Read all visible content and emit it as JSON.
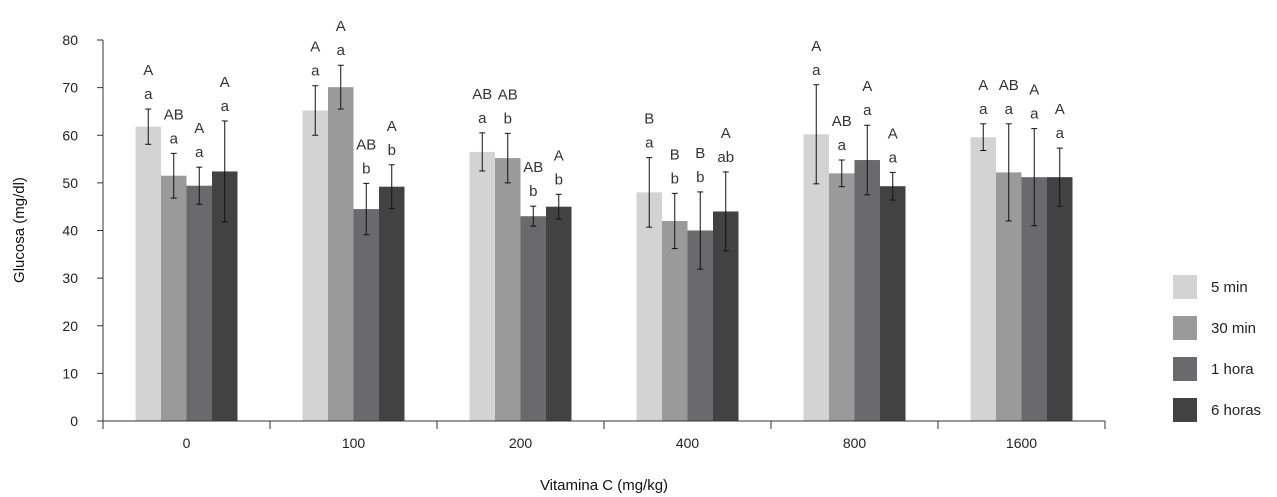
{
  "chart_data": {
    "type": "bar",
    "title": "",
    "xlabel": "Vitamina C (mg/kg)",
    "ylabel": "Glucosa (mg/dl)",
    "ylim": [
      0,
      80
    ],
    "yticks": [
      0,
      10,
      20,
      30,
      40,
      50,
      60,
      70,
      80
    ],
    "categories": [
      "0",
      "100",
      "200",
      "400",
      "800",
      "1600"
    ],
    "grid": false,
    "legend_position": "right",
    "series": [
      {
        "name": "5 min",
        "color": "#d3d3d3",
        "values": [
          61.8,
          65.2,
          56.5,
          48.0,
          60.2,
          59.6
        ],
        "errors": [
          3.7,
          5.2,
          4.0,
          7.3,
          10.4,
          2.8
        ],
        "upper_labels": [
          "A",
          "A",
          "AB",
          "B",
          "A",
          "A"
        ],
        "lower_labels": [
          "a",
          "a",
          "a",
          "a",
          "a",
          "a"
        ]
      },
      {
        "name": "30 min",
        "color": "#9a9a9a",
        "values": [
          51.5,
          70.1,
          55.2,
          42.0,
          52.0,
          52.2
        ],
        "errors": [
          4.7,
          4.6,
          5.2,
          5.8,
          2.8,
          10.2
        ],
        "upper_labels": [
          "AB",
          "A",
          "AB",
          "B",
          "AB",
          "AB"
        ],
        "lower_labels": [
          "a",
          "a",
          "b",
          "b",
          "a",
          "a"
        ]
      },
      {
        "name": "1 hora",
        "color": "#6a6a6c",
        "values": [
          49.4,
          44.5,
          43.0,
          40.0,
          54.8,
          51.2
        ],
        "errors": [
          3.9,
          5.4,
          2.1,
          8.1,
          7.3,
          10.2
        ],
        "upper_labels": [
          "A",
          "AB",
          "AB",
          "B",
          "A",
          "A"
        ],
        "lower_labels": [
          "a",
          "b",
          "b",
          "b",
          "a",
          "a"
        ]
      },
      {
        "name": "6 horas",
        "color": "#424242",
        "values": [
          52.4,
          49.2,
          45.0,
          44.0,
          49.3,
          51.2
        ],
        "errors": [
          10.6,
          4.6,
          2.6,
          8.3,
          2.9,
          6.1
        ],
        "upper_labels": [
          "A",
          "A",
          "A",
          "A",
          "A",
          "A"
        ],
        "lower_labels": [
          "a",
          "b",
          "b",
          "ab",
          "a",
          "a"
        ]
      }
    ]
  }
}
